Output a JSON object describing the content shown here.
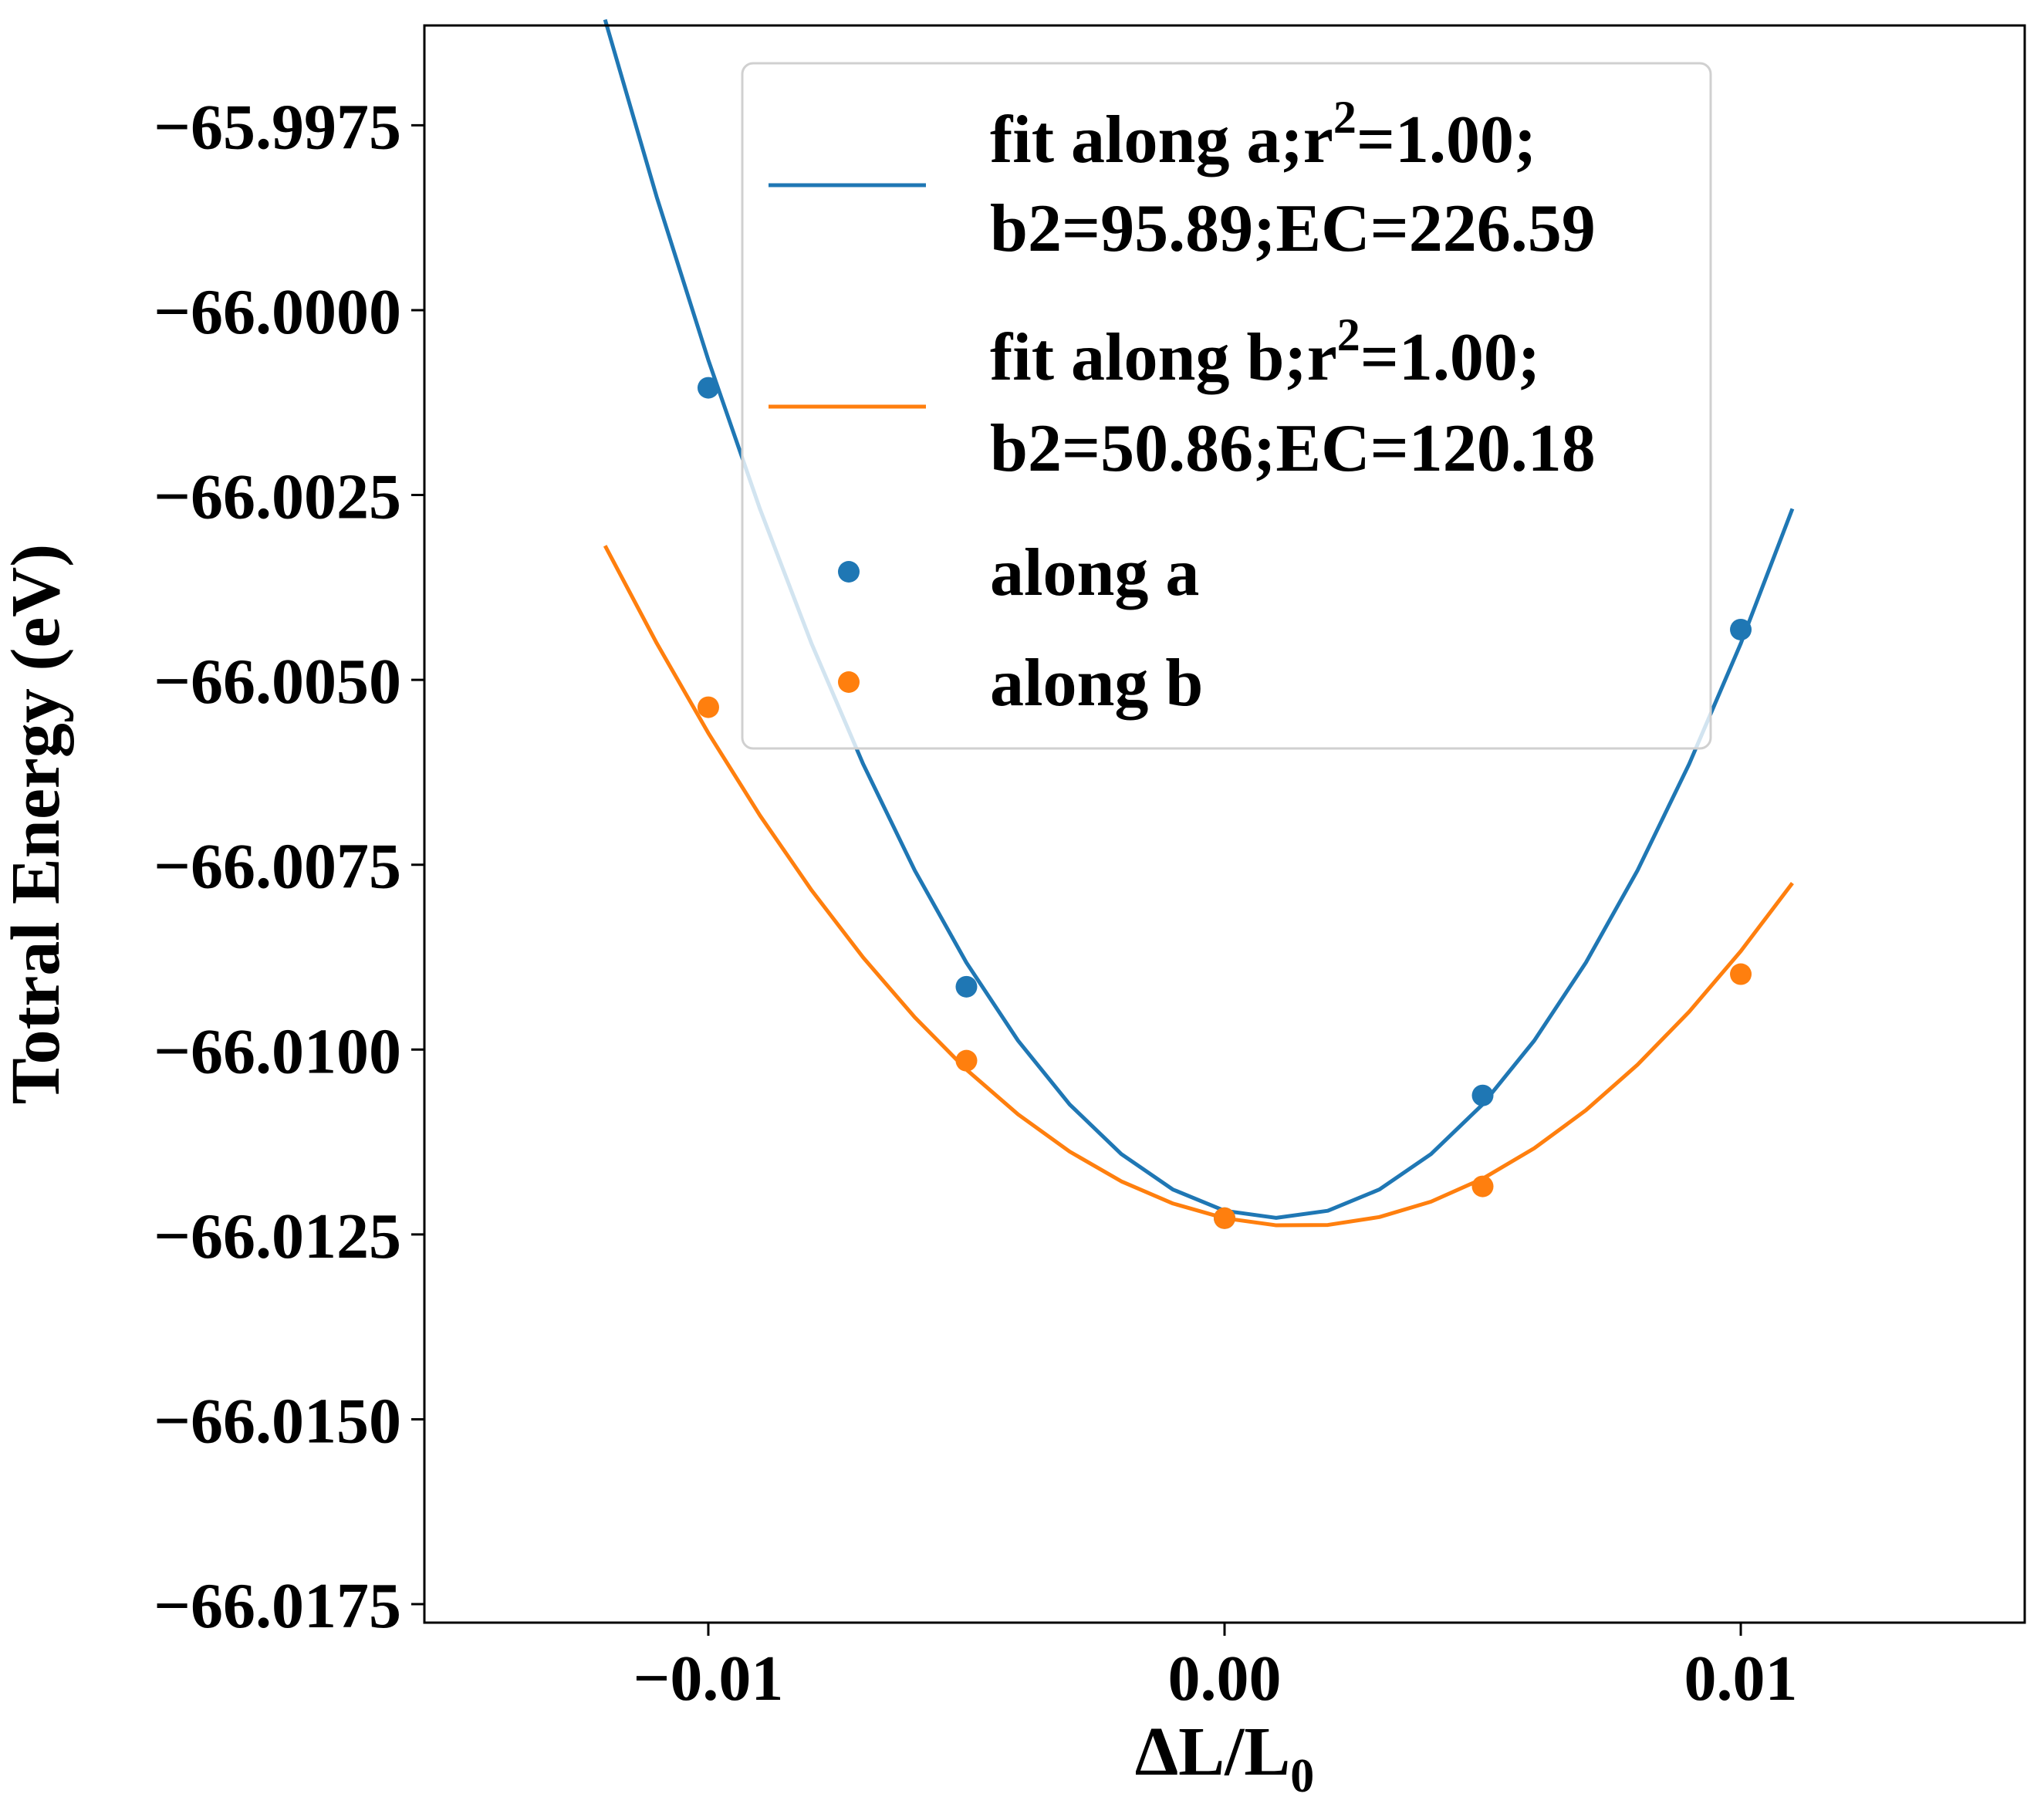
{
  "chart_data": {
    "type": "line",
    "title": "",
    "xlabel": "ΔL/L",
    "xlabel_sub": "0",
    "ylabel": "Totral Energy (eV)",
    "xlim": [
      -0.0155,
      0.0155
    ],
    "ylim": [
      -66.01775,
      -65.99615
    ],
    "x_ticks": [
      -0.01,
      0.0,
      0.01
    ],
    "x_tick_labels": [
      "−0.01",
      "0.00",
      "0.01"
    ],
    "y_ticks": [
      -65.9975,
      -66.0,
      -66.0025,
      -66.005,
      -66.0075,
      -66.01,
      -66.0125,
      -66.015,
      -66.0175
    ],
    "y_tick_labels": [
      "−65.9975",
      "−66.0000",
      "−66.0025",
      "−66.0050",
      "−66.0075",
      "−66.0100",
      "−66.0125",
      "−66.0150",
      "−66.0175"
    ],
    "grid": false,
    "legend_position": "top-right",
    "series": [
      {
        "name": "fit along a;r^2=1.00; b2=95.89;EC=226.59",
        "kind": "line",
        "color": "#1f77b4",
        "coeffs": {
          "a": 95.89,
          "b": -0.1917,
          "c": -66.01218
        },
        "x_range": [
          -0.012,
          0.011
        ],
        "x_step": 0.001
      },
      {
        "name": "fit along b;r^2=1.00; b2=50.86;EC=120.18",
        "kind": "line",
        "color": "#ff7f0e",
        "coeffs": {
          "a": 50.86,
          "b": -0.1475,
          "c": -66.01228
        },
        "x_range": [
          -0.012,
          0.011
        ],
        "x_step": 0.001
      },
      {
        "name": "along a",
        "kind": "scatter",
        "color": "#1f77b4",
        "x": [
          -0.01,
          -0.005,
          0.0,
          0.005,
          0.01
        ],
        "y": [
          -66.00105,
          -66.00915,
          -66.01228,
          -66.01062,
          -66.00432
        ]
      },
      {
        "name": "along b",
        "kind": "scatter",
        "color": "#ff7f0e",
        "x": [
          -0.01,
          -0.005,
          0.0,
          0.005,
          0.01
        ],
        "y": [
          -66.00537,
          -66.01015,
          -66.01228,
          -66.01185,
          -66.00898
        ]
      }
    ],
    "legend": [
      {
        "label_line1_pre": "fit along a;r",
        "sup": "2",
        "label_line1_post": "=1.00;",
        "label_line2": "b2=95.89;EC=226.59",
        "marker": "line",
        "color": "#1f77b4"
      },
      {
        "label_line1_pre": "fit along b;r",
        "sup": "2",
        "label_line1_post": "=1.00;",
        "label_line2": "b2=50.86;EC=120.18",
        "marker": "line",
        "color": "#ff7f0e"
      },
      {
        "label": "along a",
        "marker": "dot",
        "color": "#1f77b4"
      },
      {
        "label": "along b",
        "marker": "dot",
        "color": "#ff7f0e"
      }
    ]
  }
}
